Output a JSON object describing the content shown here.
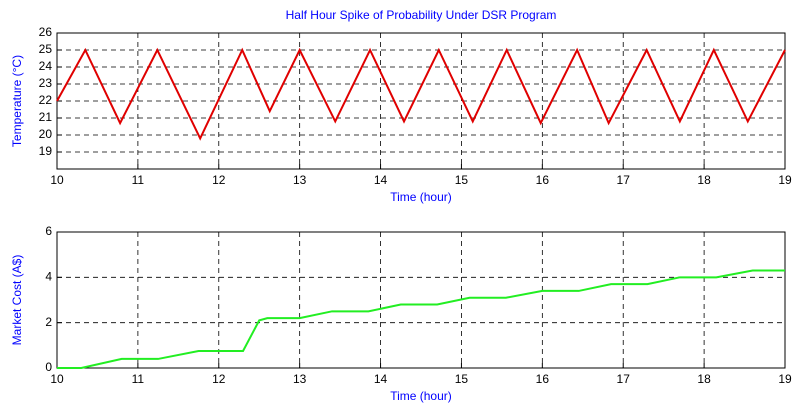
{
  "chart_data": [
    {
      "type": "line",
      "title": "Half Hour Spike of Probability Under DSR Program",
      "ylabel": "Temperature (°C)",
      "xlabel": "Time (hour)",
      "x": [
        10,
        10.35,
        10.78,
        11.24,
        11.77,
        12.29,
        12.63,
        13.0,
        13.44,
        13.87,
        14.29,
        14.72,
        15.14,
        15.56,
        15.98,
        16.43,
        16.82,
        17.29,
        17.7,
        18.12,
        18.54,
        19
      ],
      "series": [
        {
          "name": "Temperature",
          "color": "#e00000",
          "values": [
            22.0,
            25,
            20.7,
            25,
            19.8,
            25,
            21.4,
            25,
            20.8,
            25,
            20.8,
            25,
            20.8,
            25,
            20.7,
            25,
            20.7,
            25,
            20.8,
            25,
            20.8,
            25
          ]
        }
      ],
      "xlim": [
        10,
        19
      ],
      "xticks": [
        10,
        11,
        12,
        13,
        14,
        15,
        16,
        17,
        18,
        19
      ],
      "ylim": [
        18,
        26
      ],
      "yticks": [
        19,
        20,
        21,
        22,
        23,
        24,
        25,
        26
      ],
      "grid": true
    },
    {
      "type": "line",
      "ylabel": "Market Cost (A$)",
      "xlabel": "Time (hour)",
      "x": [
        10,
        10.3,
        10.8,
        11.25,
        11.75,
        12.3,
        12.5,
        12.6,
        13.0,
        13.4,
        13.85,
        14.25,
        14.7,
        15.1,
        15.55,
        16.0,
        16.45,
        16.85,
        17.3,
        17.7,
        18.15,
        18.6,
        19
      ],
      "series": [
        {
          "name": "Market Cost",
          "color": "#22ee22",
          "values": [
            0,
            0,
            0.4,
            0.4,
            0.75,
            0.75,
            2.1,
            2.2,
            2.2,
            2.5,
            2.5,
            2.8,
            2.8,
            3.1,
            3.1,
            3.4,
            3.4,
            3.7,
            3.7,
            4.0,
            4.0,
            4.3,
            4.3
          ]
        }
      ],
      "xlim": [
        10,
        19
      ],
      "xticks": [
        10,
        11,
        12,
        13,
        14,
        15,
        16,
        17,
        18,
        19
      ],
      "ylim": [
        0,
        6
      ],
      "yticks": [
        0,
        2,
        4,
        6
      ],
      "grid": true
    }
  ]
}
